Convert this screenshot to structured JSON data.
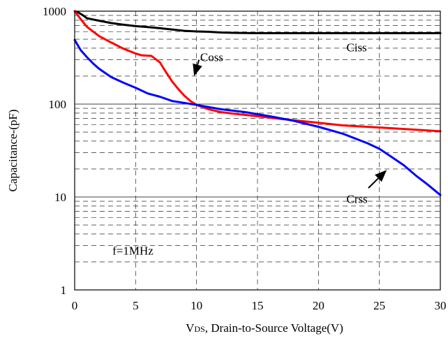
{
  "chart_data": {
    "type": "line",
    "x_axis": {
      "label_prefix": "V",
      "label_subscript": "DS",
      "label_suffix": ", Drain-to-Source Voltage(V)",
      "range": [
        0,
        30
      ],
      "ticks": [
        "0",
        "5",
        "10",
        "15",
        "20",
        "25",
        "30"
      ]
    },
    "y_axis": {
      "label": "Capacitance-(pF)",
      "scale": "log",
      "range": [
        1,
        1000
      ],
      "ticks": [
        "1",
        "10",
        "100",
        "1000"
      ]
    },
    "grid": {
      "major": "solid",
      "minor": "dashed",
      "vertical": "dashed"
    },
    "series": [
      {
        "name": "Ciss",
        "color": "#000000",
        "x": [
          0,
          0.3,
          0.7,
          1,
          2,
          3,
          4,
          5,
          6,
          7,
          8,
          9,
          10,
          11,
          12,
          13,
          14,
          15,
          20,
          25,
          30
        ],
        "y": [
          1000,
          970,
          900,
          840,
          790,
          745,
          715,
          690,
          675,
          655,
          635,
          615,
          605,
          600,
          590,
          585,
          582,
          580,
          580,
          580,
          580
        ]
      },
      {
        "name": "Coss",
        "color": "#ff0000",
        "x": [
          0,
          0.5,
          1,
          2,
          3,
          4,
          5,
          5.5,
          6.3,
          7,
          7.5,
          8,
          8.5,
          9,
          9.5,
          10,
          11,
          12,
          13,
          15,
          17,
          20,
          22,
          25,
          27,
          30
        ],
        "y": [
          1000,
          820,
          680,
          540,
          460,
          395,
          350,
          335,
          330,
          280,
          220,
          175,
          145,
          123,
          108,
          98,
          88,
          82,
          79,
          74,
          69,
          63,
          59,
          56,
          54,
          51
        ]
      },
      {
        "name": "Crss",
        "color": "#0000ff",
        "x": [
          0,
          0.5,
          1,
          1.5,
          2,
          3,
          4,
          5,
          6,
          7,
          8,
          9,
          10,
          12,
          14,
          16,
          18,
          20,
          22,
          24,
          25,
          26,
          27,
          28,
          29,
          30
        ],
        "y": [
          490,
          380,
          320,
          275,
          240,
          195,
          170,
          150,
          130,
          120,
          108,
          103,
          98,
          88,
          82,
          74,
          66,
          57,
          48,
          38,
          33,
          27,
          22,
          17,
          13.5,
          10.5
        ]
      }
    ],
    "annotations": [
      {
        "text": "Coss",
        "x": 10.3,
        "y": 290,
        "arrow_from": [
          10.2,
          300
        ],
        "arrow_to": [
          9.8,
          200
        ]
      },
      {
        "text": "Ciss",
        "x": 22.3,
        "y": 370
      },
      {
        "text": "Crss",
        "x": 22.3,
        "y": 8.6,
        "arrow_from": [
          24.1,
          12.5
        ],
        "arrow_to": [
          25.6,
          19.5
        ]
      },
      {
        "text": "f=1MHz",
        "x": 3.1,
        "y": 2.4
      }
    ]
  }
}
